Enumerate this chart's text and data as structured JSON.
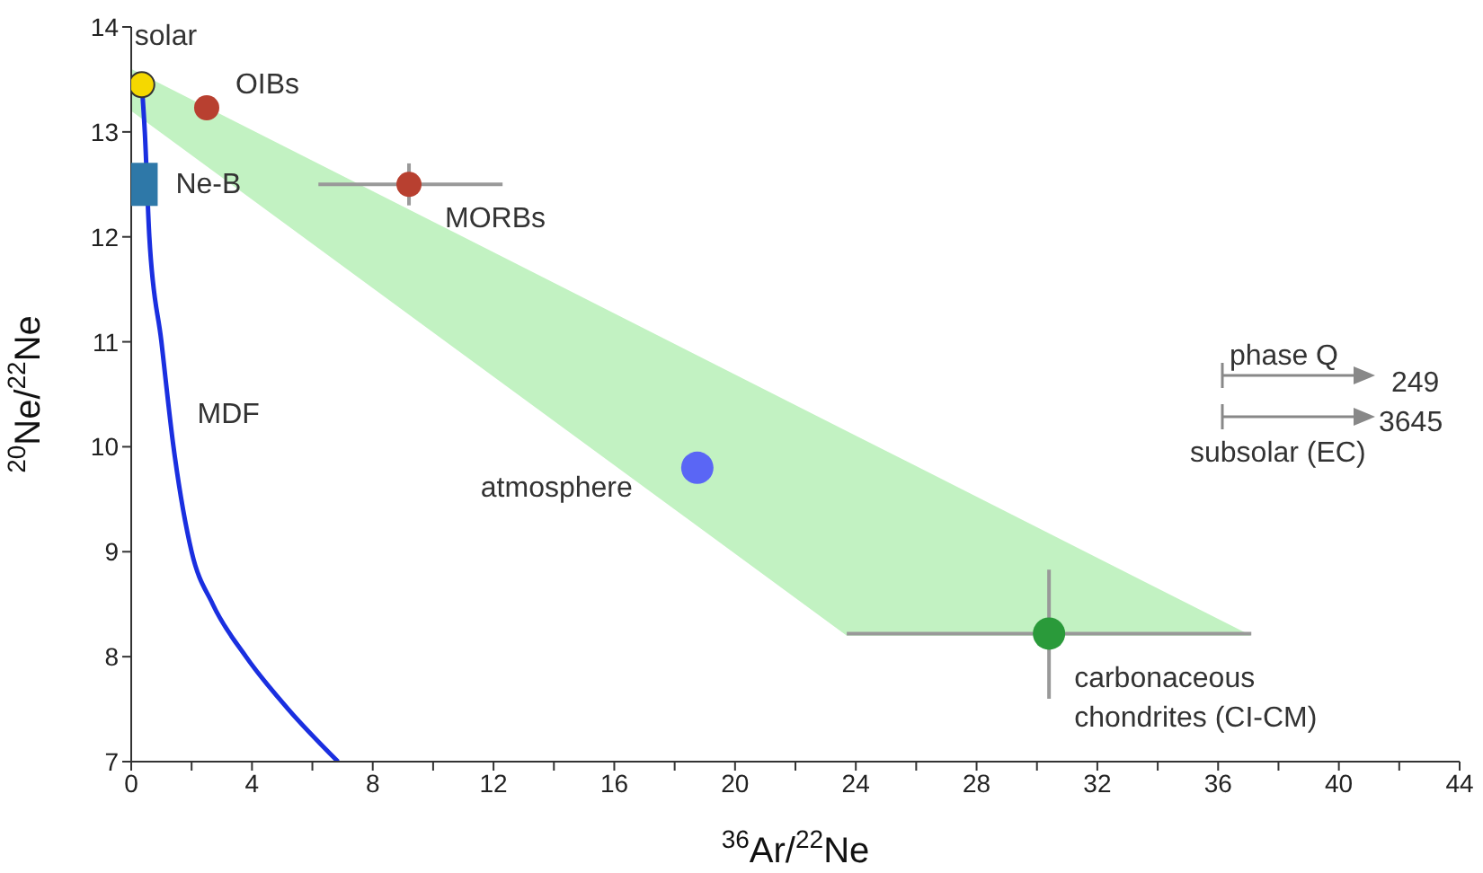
{
  "chart_data": {
    "type": "scatter",
    "xlabel": "$^{36}$Ar/$^{22}$Ne",
    "ylabel": "$^{20}$Ne/$^{22}$Ne",
    "xlim": [
      0,
      44
    ],
    "ylim": [
      7,
      14
    ],
    "xticks": [
      0,
      {
        "value": 2,
        "label": null
      },
      4,
      {
        "value": 6,
        "label": null
      },
      8,
      {
        "value": 10,
        "label": null
      },
      12,
      {
        "value": 14,
        "label": null
      },
      16,
      {
        "value": 18,
        "label": null
      },
      20,
      {
        "value": 22,
        "label": null
      },
      24,
      {
        "value": 26,
        "label": null
      },
      28,
      {
        "value": 30,
        "label": null
      },
      32,
      {
        "value": 34,
        "label": null
      },
      36,
      {
        "value": 38,
        "label": null
      },
      40,
      {
        "value": 42,
        "label": null
      },
      44
    ],
    "yticks": [
      7,
      8,
      9,
      10,
      11,
      12,
      13,
      14
    ],
    "series": [
      {
        "type": "area",
        "color": "#c2f2c2",
        "x": [
          0,
          23.7,
          37.1
        ],
        "values": [
          null,
          null,
          null
        ],
        "lower": [
          13.2,
          8.2,
          8.2
        ],
        "upper": [
          13.6,
          10.15,
          8.2
        ]
      },
      {
        "type": "line",
        "name": "MDF",
        "color": "#1a2fe0",
        "marker": "none",
        "x": [
          0.35,
          0.45,
          0.6,
          1.0,
          1.4,
          2.0,
          2.7,
          3.8,
          5.2,
          6.85
        ],
        "values": [
          13.45,
          13,
          12,
          11,
          10,
          9,
          8.5,
          8,
          7.5,
          7
        ]
      },
      {
        "name": "solar",
        "color": "#f5d800",
        "marker": "circle",
        "x": [
          0.35
        ],
        "values": [
          13.45
        ]
      },
      {
        "name": "OIBs",
        "color": "#b84030",
        "marker": "circle",
        "x": [
          2.5
        ],
        "values": [
          13.23
        ]
      },
      {
        "name": "Ne-B",
        "color": "#2e78a8",
        "marker": "square",
        "x": [
          0.4
        ],
        "values": [
          12.5
        ]
      },
      {
        "name": "MORBs",
        "color": "#b84030",
        "marker": "circle",
        "x": [
          9.2
        ],
        "values": [
          12.5
        ],
        "errors": [
          [
            12.3,
            12.7
          ]
        ],
        "xerrors": [
          [
            6.2,
            12.3
          ]
        ]
      },
      {
        "name": "atmosphere",
        "color": "#5a66f5",
        "marker": "circle",
        "x": [
          18.75
        ],
        "values": [
          9.8
        ]
      },
      {
        "name": "carbonaceous chondrites (CI-CM)",
        "color": "#2a9a3a",
        "marker": "circle",
        "x": [
          30.4
        ],
        "values": [
          8.22
        ],
        "errors": [
          [
            7.6,
            8.83
          ]
        ],
        "xerrors": [
          [
            23.7,
            37.1
          ]
        ]
      }
    ],
    "annotations": [
      "phase Q",
      "249",
      "subsolar (EC)",
      "3645"
    ]
  }
}
